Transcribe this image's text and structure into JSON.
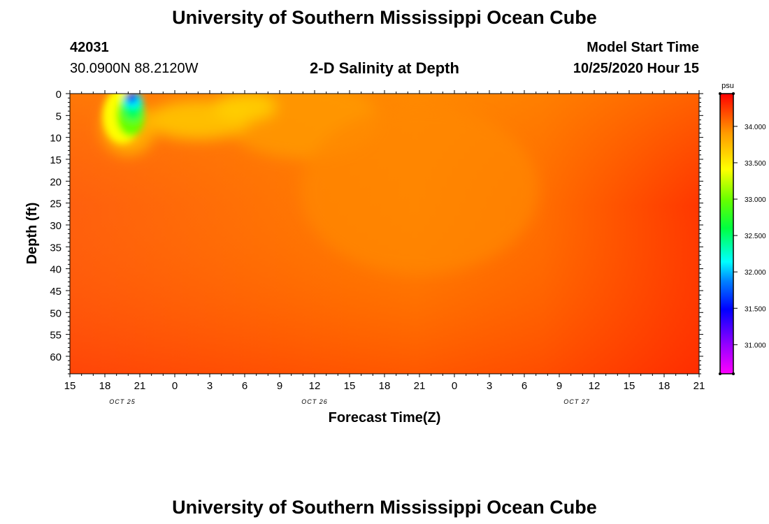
{
  "header": {
    "title": "University of Southern Mississippi Ocean Cube",
    "station_id": "42031",
    "station_coords": "30.0900N 88.2120W",
    "plot_title": "2-D Salinity at Depth",
    "model_start_label": "Model Start Time",
    "model_start_value": "10/25/2020 Hour 15"
  },
  "footer": {
    "title": "University of Southern Mississippi Ocean Cube"
  },
  "chart_data": {
    "type": "heatmap",
    "title": "2-D Salinity at Depth",
    "xlabel": "Forecast Time(Z)",
    "ylabel": "Depth (ft)",
    "x_tick_labels": [
      "15",
      "18",
      "21",
      "0",
      "3",
      "6",
      "9",
      "12",
      "15",
      "18",
      "21",
      "0",
      "3",
      "6",
      "9",
      "12",
      "15",
      "18",
      "21"
    ],
    "x_date_labels": [
      {
        "label": "OCT 25",
        "at_tick": 1.5
      },
      {
        "label": "OCT 26",
        "at_tick": 7
      },
      {
        "label": "OCT 27",
        "at_tick": 14.5
      }
    ],
    "x_range_hours": [
      0,
      54
    ],
    "y_tick_labels": [
      "0",
      "5",
      "10",
      "15",
      "20",
      "25",
      "30",
      "35",
      "40",
      "45",
      "50",
      "55",
      "60"
    ],
    "ylim": [
      0,
      64
    ],
    "y_reversed": true,
    "colorbar": {
      "unit": "psu",
      "range": [
        30.6,
        34.45
      ],
      "tick_labels": [
        "34.000",
        "33.500",
        "33.000",
        "32.500",
        "32.000",
        "31.500",
        "31.000"
      ],
      "tick_values": [
        34.0,
        33.5,
        33.0,
        32.5,
        32.0,
        31.5,
        31.0
      ],
      "colors": [
        "#ff00ff",
        "#9900ff",
        "#0000ff",
        "#0066ff",
        "#00ffff",
        "#00ff55",
        "#66ff00",
        "#ffff00",
        "#ff9900",
        "#ff0000"
      ]
    },
    "approx_field_features": [
      {
        "feature": "surface freshwater minimum",
        "time_hours": 5,
        "depth_ft": 1,
        "salinity_psu": 31.5
      },
      {
        "feature": "brackish surface layer",
        "time_hours": 5,
        "depth_ft": 7,
        "salinity_psu": 33.0
      },
      {
        "feature": "fresher surface layer",
        "time_hours": 12,
        "depth_ft": 5,
        "salinity_psu": 33.75
      },
      {
        "feature": "mid-domain interior",
        "time_hours": 30,
        "depth_ft": 20,
        "salinity_psu": 34.1
      },
      {
        "feature": "bottom / late-period",
        "time_hours": 54,
        "depth_ft": 60,
        "salinity_psu": 34.4
      }
    ]
  }
}
